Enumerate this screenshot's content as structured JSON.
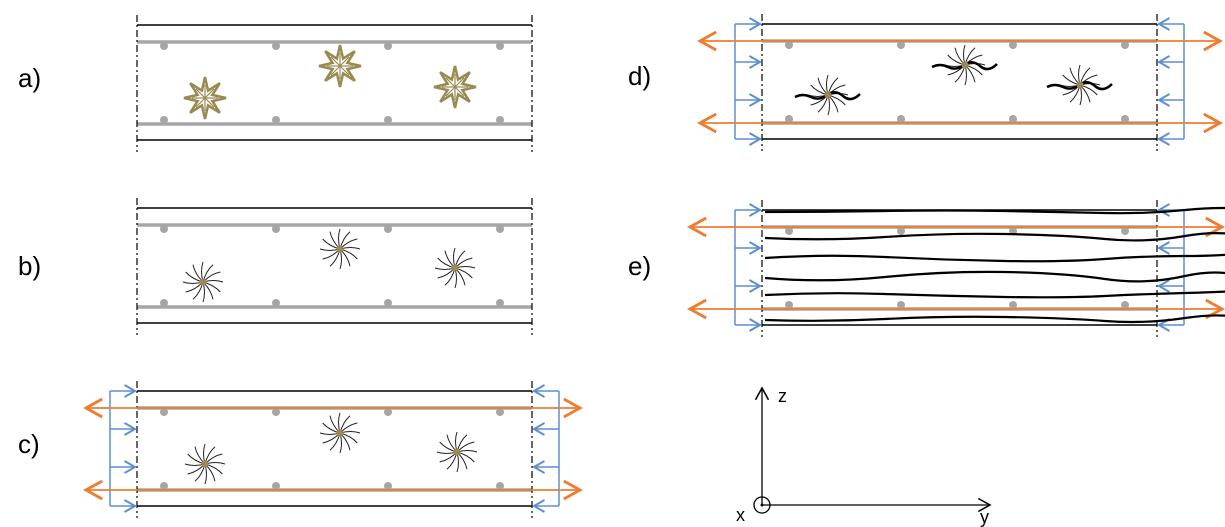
{
  "panels": [
    {
      "label": "a)"
    },
    {
      "label": "b)"
    },
    {
      "label": "c)"
    },
    {
      "label": "d)"
    },
    {
      "label": "e)"
    }
  ],
  "axes": {
    "z": "z",
    "y": "y",
    "x": "x"
  }
}
